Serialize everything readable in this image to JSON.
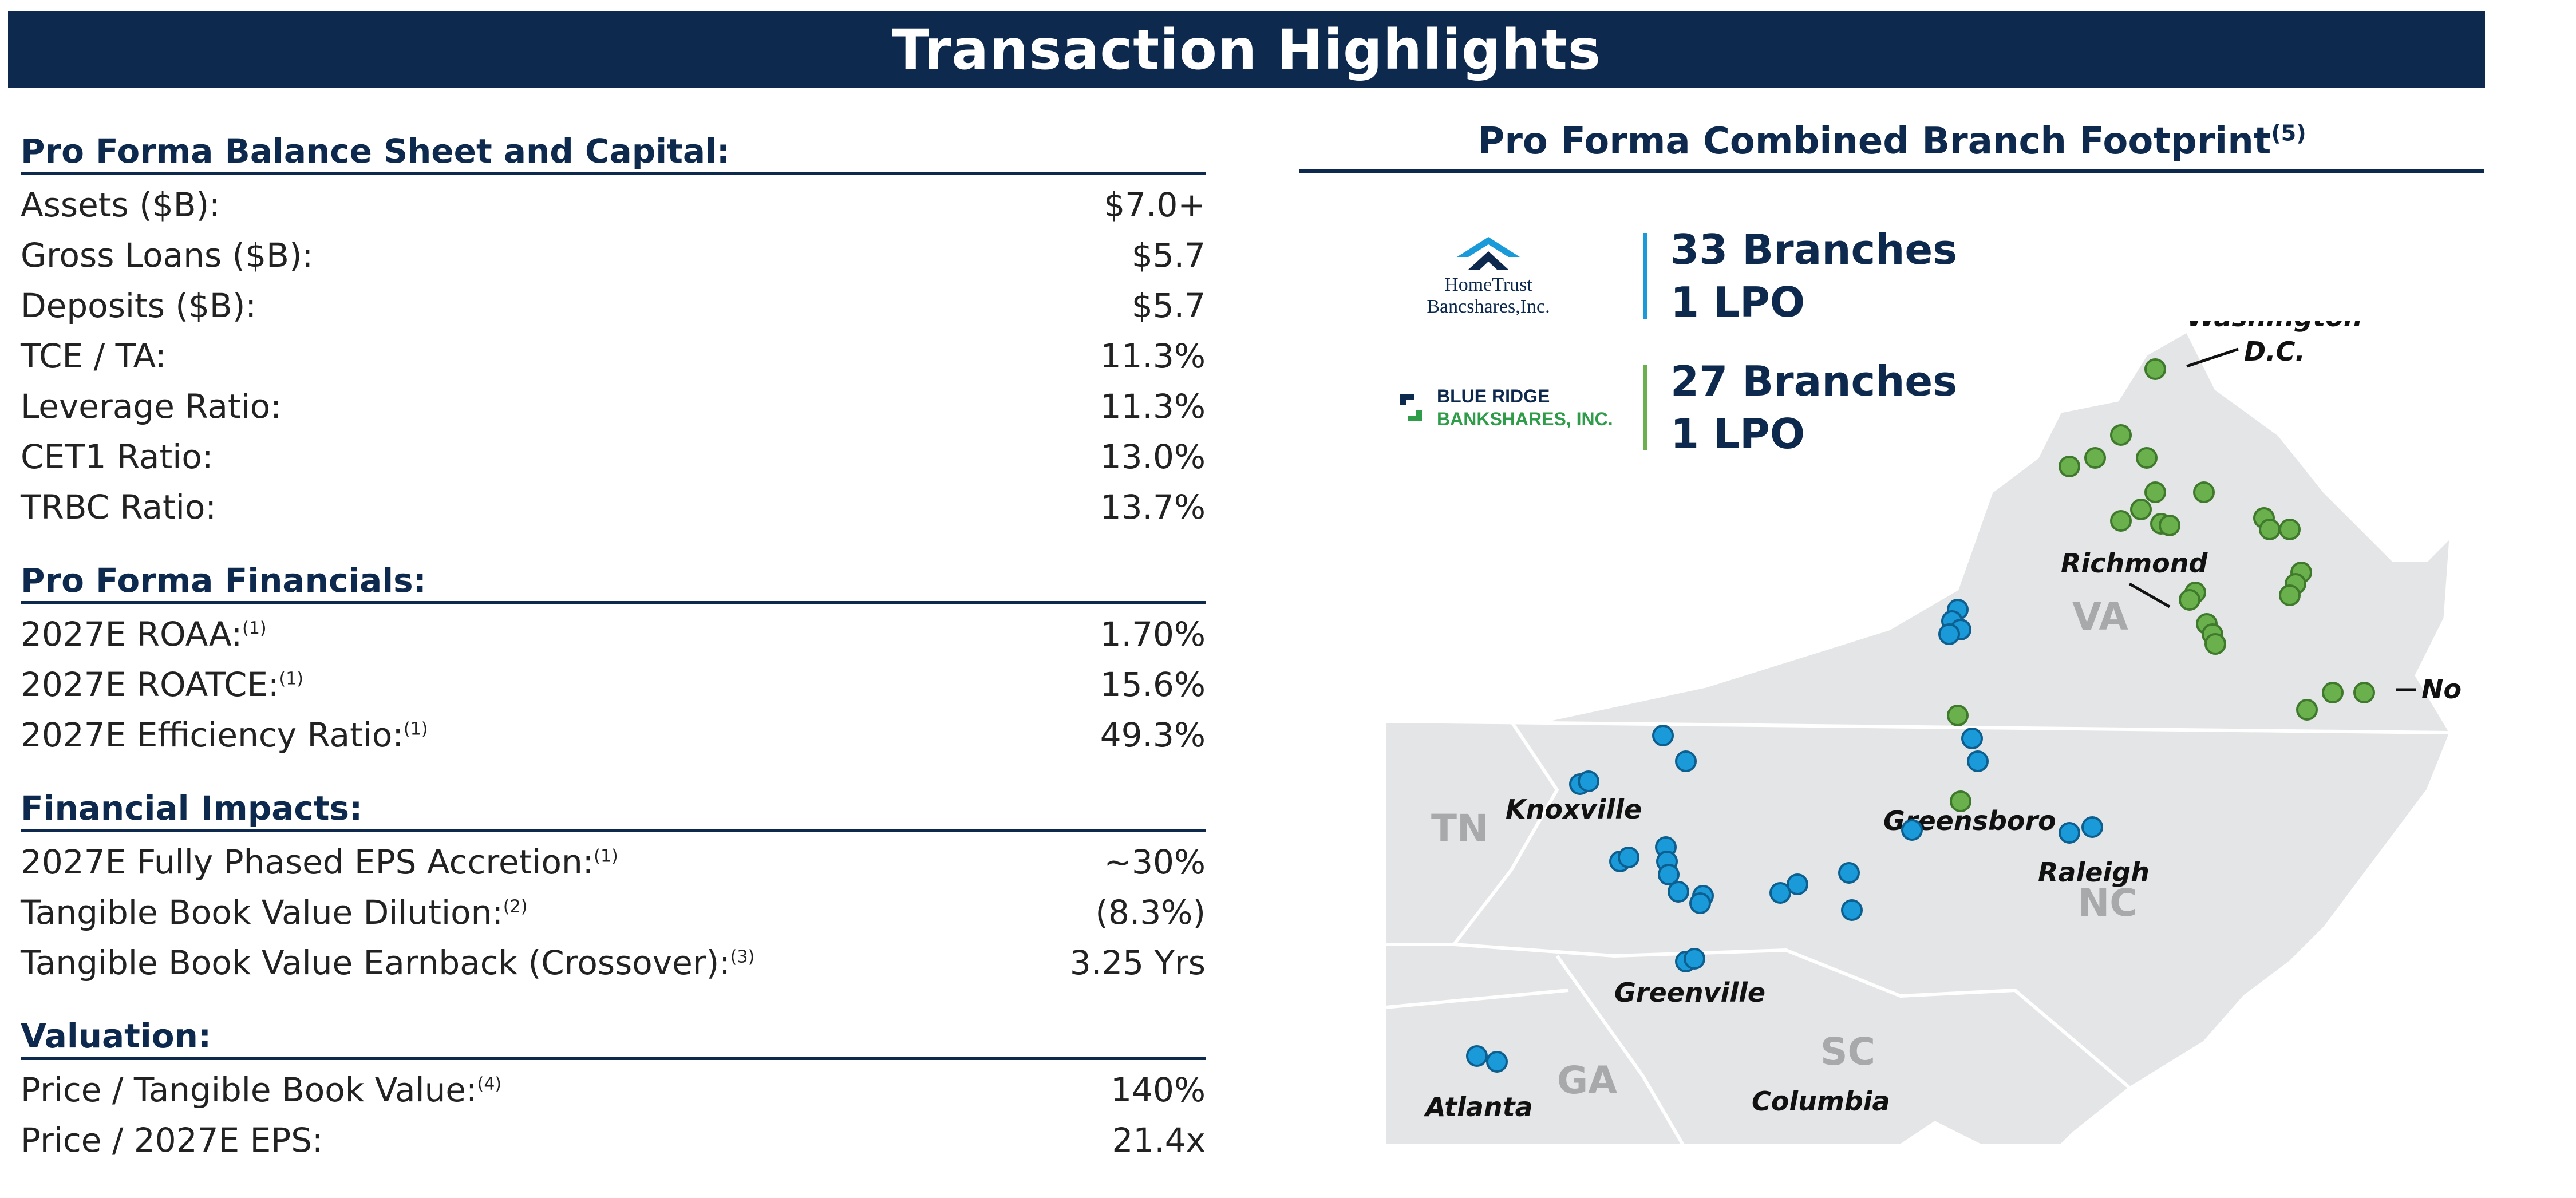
{
  "banner_title": "Transaction Highlights",
  "left": {
    "sections": [
      {
        "title": "Pro Forma Balance Sheet and Capital:",
        "rows": [
          {
            "label": "Assets ($B):",
            "sup": "",
            "value": "$7.0+"
          },
          {
            "label": "Gross Loans ($B):",
            "sup": "",
            "value": "$5.7"
          },
          {
            "label": "Deposits ($B):",
            "sup": "",
            "value": "$5.7"
          },
          {
            "label": "TCE / TA:",
            "sup": "",
            "value": "11.3%"
          },
          {
            "label": "Leverage Ratio:",
            "sup": "",
            "value": "11.3%"
          },
          {
            "label": "CET1 Ratio:",
            "sup": "",
            "value": "13.0%"
          },
          {
            "label": "TRBC Ratio:",
            "sup": "",
            "value": "13.7%"
          }
        ]
      },
      {
        "title": "Pro Forma Financials:",
        "rows": [
          {
            "label": "2027E ROAA:",
            "sup": "(1)",
            "value": "1.70%"
          },
          {
            "label": "2027E ROATCE:",
            "sup": "(1)",
            "value": "15.6%"
          },
          {
            "label": "2027E Efficiency Ratio:",
            "sup": "(1)",
            "value": "49.3%"
          }
        ]
      },
      {
        "title": "Financial Impacts:",
        "rows": [
          {
            "label": "2027E Fully Phased EPS Accretion:",
            "sup": "(1)",
            "value": "~30%"
          },
          {
            "label": "Tangible Book Value Dilution:",
            "sup": "(2)",
            "value": "(8.3%)"
          },
          {
            "label": "Tangible Book Value Earnback (Crossover):",
            "sup": "(3)",
            "value": "3.25 Yrs"
          }
        ]
      },
      {
        "title": "Valuation:",
        "rows": [
          {
            "label": "Price / Tangible Book Value:",
            "sup": "(4)",
            "value": "140%"
          },
          {
            "label": "Price / 2027E EPS:",
            "sup": "",
            "value": "21.4x"
          }
        ]
      }
    ]
  },
  "right": {
    "title": "Pro Forma Combined Branch Footprint",
    "title_sup": "(5)",
    "legend": [
      {
        "logo_line1": "HomeTrust",
        "logo_line2": "Bancshares,Inc.",
        "count": "33 Branches",
        "lpo": "1 LPO",
        "color": "#1a9ad9"
      },
      {
        "logo_line1": "BLUE RIDGE",
        "logo_line2": "BANKSHARES, INC.",
        "count": "27 Branches",
        "lpo": "1 LPO",
        "color": "#6ab04c"
      }
    ],
    "map": {
      "states": [
        "VA",
        "TN",
        "NC",
        "SC",
        "GA"
      ],
      "cities": [
        "Washington",
        "D.C.",
        "Richmond",
        "Norfolk",
        "Knoxville",
        "Greensboro",
        "Raleigh",
        "Greenville",
        "Atlanta",
        "Columbia"
      ]
    }
  },
  "colors": {
    "navy": "#0d2a4e",
    "blue": "#1a9ad9",
    "green": "#6ab04c",
    "map_fill": "#e4e5e6"
  },
  "icons": [
    "hometrust-logo-icon",
    "blue-ridge-logo-icon"
  ]
}
